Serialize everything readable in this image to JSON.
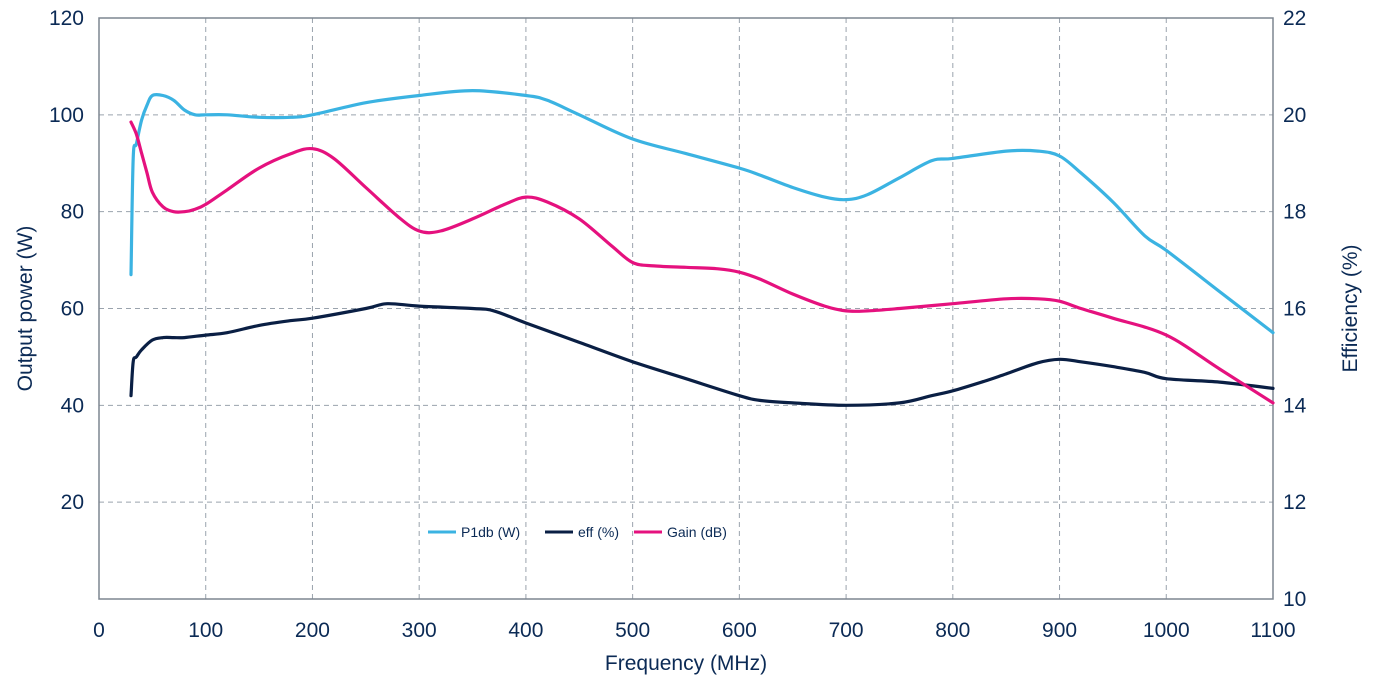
{
  "chart_data": {
    "type": "line",
    "xlabel": "Frequency (MHz)",
    "ylabel_left": "Output power (W)",
    "ylabel_right": "Efficiency (%)",
    "xlim": [
      0,
      1100
    ],
    "ylim_left": [
      0,
      120
    ],
    "ylim_right": [
      10,
      22
    ],
    "x_ticks": [
      "0",
      "100",
      "200",
      "300",
      "400",
      "500",
      "600",
      "700",
      "800",
      "900",
      "1000",
      "1100"
    ],
    "y_left_ticks": [
      "20",
      "40",
      "60",
      "80",
      "100",
      "120"
    ],
    "y_right_ticks": [
      "10",
      "12",
      "14",
      "16",
      "18",
      "20",
      "22"
    ],
    "grid": true,
    "legend_position": "bottom-center",
    "colors": {
      "P1db": "#3bb3e2",
      "eff": "#0a1f44",
      "Gain": "#e5117e",
      "text": "#0b2a55"
    },
    "series": [
      {
        "name": "P1db (W)",
        "axis": "left",
        "x": [
          30,
          32,
          35,
          40,
          45,
          50,
          60,
          70,
          80,
          90,
          100,
          120,
          150,
          180,
          200,
          250,
          300,
          350,
          400,
          420,
          450,
          500,
          550,
          600,
          620,
          650,
          680,
          700,
          720,
          750,
          780,
          800,
          850,
          880,
          900,
          920,
          950,
          980,
          1000,
          1050,
          1100
        ],
        "y": [
          67,
          91,
          94,
          99,
          102,
          104,
          104,
          103,
          101,
          100,
          100,
          100,
          99.5,
          99.5,
          100,
          102.5,
          104,
          105,
          104,
          103,
          100,
          95,
          92,
          89,
          87.5,
          85,
          83,
          82.5,
          83.5,
          87,
          90.5,
          91,
          92.5,
          92.5,
          91.5,
          88,
          82,
          75,
          72,
          63.5,
          55
        ]
      },
      {
        "name": "eff (%)",
        "axis": "right",
        "x": [
          30,
          32,
          35,
          40,
          50,
          60,
          70,
          80,
          100,
          120,
          150,
          180,
          200,
          250,
          270,
          300,
          350,
          370,
          400,
          450,
          500,
          550,
          600,
          620,
          650,
          700,
          750,
          780,
          800,
          830,
          850,
          880,
          900,
          920,
          950,
          980,
          1000,
          1050,
          1100
        ],
        "y": [
          14.2,
          14.9,
          15.0,
          15.15,
          15.35,
          15.4,
          15.4,
          15.4,
          15.45,
          15.5,
          15.65,
          15.75,
          15.8,
          16.0,
          16.1,
          16.05,
          16.0,
          15.95,
          15.7,
          15.3,
          14.9,
          14.55,
          14.2,
          14.1,
          14.05,
          14.0,
          14.05,
          14.2,
          14.3,
          14.5,
          14.65,
          14.88,
          14.95,
          14.9,
          14.8,
          14.68,
          14.55,
          14.48,
          14.35
        ]
      },
      {
        "name": "Gain (dB)",
        "axis": "right",
        "x": [
          30,
          35,
          40,
          45,
          50,
          60,
          70,
          80,
          90,
          100,
          120,
          150,
          180,
          200,
          220,
          250,
          280,
          300,
          320,
          350,
          380,
          400,
          420,
          450,
          480,
          500,
          520,
          550,
          580,
          600,
          620,
          650,
          680,
          700,
          720,
          750,
          800,
          850,
          880,
          900,
          920,
          950,
          1000,
          1050,
          1100
        ],
        "y": [
          19.85,
          19.6,
          19.2,
          18.8,
          18.4,
          18.1,
          18.0,
          18.0,
          18.05,
          18.15,
          18.45,
          18.9,
          19.2,
          19.3,
          19.1,
          18.5,
          17.9,
          17.6,
          17.6,
          17.85,
          18.15,
          18.3,
          18.2,
          17.85,
          17.3,
          16.95,
          16.88,
          16.85,
          16.82,
          16.75,
          16.6,
          16.3,
          16.05,
          15.95,
          15.95,
          16.0,
          16.1,
          16.2,
          16.2,
          16.15,
          16.0,
          15.8,
          15.45,
          14.75,
          14.05
        ]
      }
    ]
  }
}
